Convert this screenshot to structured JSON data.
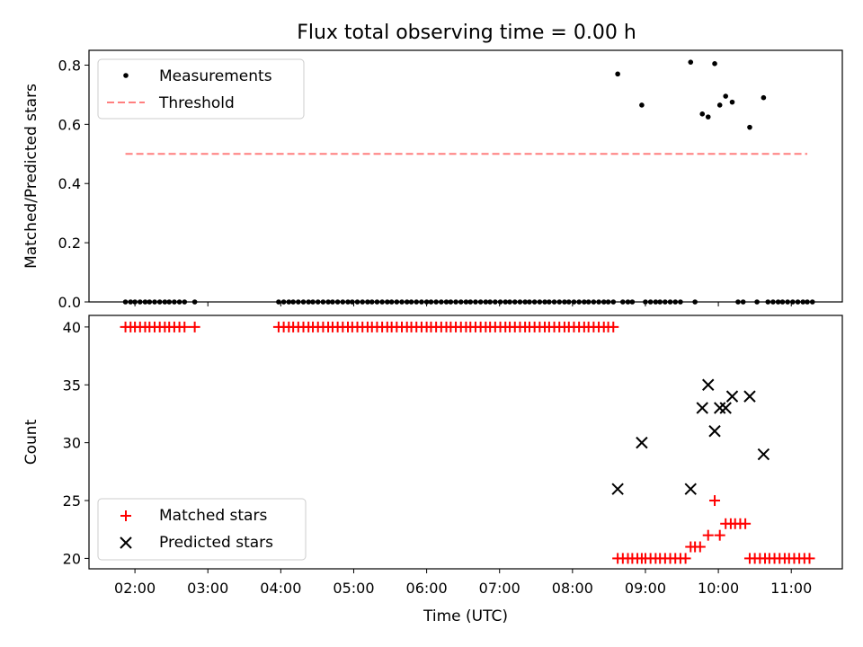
{
  "title": "Flux total observing time = 0.00 h",
  "chart_data": [
    {
      "type": "scatter",
      "title": "Flux total observing time = 0.00 h",
      "xlabel": "",
      "ylabel": "Matched/Predicted stars",
      "xlim": [
        1.37,
        11.7
      ],
      "ylim": [
        0,
        0.85
      ],
      "yticks": [
        0.0,
        0.2,
        0.4,
        0.6,
        0.8
      ],
      "ytick_labels": [
        "0.0",
        "0.2",
        "0.4",
        "0.6",
        "0.8"
      ],
      "grid": false,
      "legend_position": "top-left",
      "series": [
        {
          "name": "Measurements",
          "color": "#000000",
          "marker": "dot",
          "zero_x": [
            1.87,
            1.94,
            2.0,
            2.07,
            2.14,
            2.2,
            2.27,
            2.34,
            2.41,
            2.47,
            2.54,
            2.61,
            2.68,
            2.82,
            3.97,
            4.04,
            4.11,
            4.17,
            4.24,
            4.31,
            4.38,
            4.44,
            4.51,
            4.58,
            4.65,
            4.71,
            4.78,
            4.85,
            4.92,
            4.98,
            5.05,
            5.12,
            5.19,
            5.25,
            5.32,
            5.39,
            5.46,
            5.52,
            5.59,
            5.66,
            5.73,
            5.79,
            5.86,
            5.93,
            6.0,
            6.06,
            6.13,
            6.2,
            6.27,
            6.33,
            6.4,
            6.47,
            6.54,
            6.6,
            6.67,
            6.74,
            6.81,
            6.87,
            6.94,
            7.01,
            7.08,
            7.14,
            7.21,
            7.28,
            7.35,
            7.41,
            7.48,
            7.55,
            7.62,
            7.68,
            7.75,
            7.82,
            7.89,
            7.95,
            8.02,
            8.09,
            8.16,
            8.22,
            8.29,
            8.36,
            8.43,
            8.49,
            8.56,
            8.69,
            8.76,
            8.82,
            9.0,
            9.07,
            9.14,
            9.2,
            9.27,
            9.34,
            9.41,
            9.48,
            9.68,
            10.27,
            10.34,
            10.53,
            10.68,
            10.75,
            10.82,
            10.88,
            10.95,
            11.02,
            11.09,
            11.16,
            11.22,
            11.29
          ],
          "points": [
            {
              "x": 8.62,
              "y": 0.77
            },
            {
              "x": 8.95,
              "y": 0.665
            },
            {
              "x": 9.62,
              "y": 0.81
            },
            {
              "x": 9.78,
              "y": 0.635
            },
            {
              "x": 9.86,
              "y": 0.625
            },
            {
              "x": 9.95,
              "y": 0.805
            },
            {
              "x": 10.02,
              "y": 0.665
            },
            {
              "x": 10.1,
              "y": 0.695
            },
            {
              "x": 10.19,
              "y": 0.675
            },
            {
              "x": 10.43,
              "y": 0.59
            },
            {
              "x": 10.62,
              "y": 0.69
            }
          ]
        },
        {
          "name": "Threshold",
          "color": "#ff7f7f",
          "style": "dashed",
          "x": [
            1.87,
            11.22
          ],
          "y": [
            0.5,
            0.5
          ]
        }
      ]
    },
    {
      "type": "scatter",
      "xlabel": "Time (UTC)",
      "ylabel": "Count",
      "xlim": [
        1.37,
        11.7
      ],
      "ylim": [
        19.1,
        41.0
      ],
      "xticks": [
        2,
        3,
        4,
        5,
        6,
        7,
        8,
        9,
        10,
        11
      ],
      "xtick_labels": [
        "02:00",
        "03:00",
        "04:00",
        "05:00",
        "06:00",
        "07:00",
        "08:00",
        "09:00",
        "10:00",
        "11:00"
      ],
      "yticks": [
        20,
        25,
        30,
        35,
        40
      ],
      "ytick_labels": [
        "20",
        "25",
        "30",
        "35",
        "40"
      ],
      "grid": false,
      "legend_position": "bottom-left",
      "series": [
        {
          "name": "Matched stars",
          "color": "#ff0000",
          "marker": "plus",
          "groups": [
            {
              "y": 40,
              "x": [
                1.87,
                1.94,
                2.0,
                2.07,
                2.14,
                2.2,
                2.27,
                2.34,
                2.41,
                2.47,
                2.54,
                2.61,
                2.68,
                2.82
              ]
            },
            {
              "y": 40,
              "x": [
                3.97,
                4.04,
                4.11,
                4.17,
                4.24,
                4.31,
                4.38,
                4.44,
                4.51,
                4.58,
                4.65,
                4.71,
                4.78,
                4.85,
                4.92,
                4.98,
                5.05,
                5.12,
                5.19,
                5.25,
                5.32,
                5.39,
                5.46,
                5.52,
                5.59,
                5.66,
                5.73,
                5.79,
                5.86,
                5.93,
                6.0,
                6.06,
                6.13,
                6.2,
                6.27,
                6.33,
                6.4,
                6.47,
                6.54,
                6.6,
                6.67,
                6.74,
                6.81,
                6.87,
                6.94,
                7.01,
                7.08,
                7.14,
                7.21,
                7.28,
                7.35,
                7.41,
                7.48,
                7.55,
                7.62,
                7.68,
                7.75,
                7.82,
                7.89,
                7.95,
                8.02,
                8.09,
                8.16,
                8.22,
                8.29,
                8.36,
                8.43,
                8.49,
                8.56
              ]
            },
            {
              "y": 20,
              "x": [
                8.62,
                8.69,
                8.76,
                8.82,
                8.89,
                8.95,
                9.0,
                9.07,
                9.14,
                9.2,
                9.27,
                9.34,
                9.41,
                9.48,
                9.55
              ]
            },
            {
              "y": 21,
              "x": [
                9.62,
                9.68,
                9.75
              ]
            },
            {
              "y": 22,
              "x": [
                9.86,
                10.02
              ]
            },
            {
              "y": 25,
              "x": [
                9.95
              ]
            },
            {
              "y": 23,
              "x": [
                10.1,
                10.17,
                10.23,
                10.3,
                10.37
              ]
            },
            {
              "y": 20,
              "x": [
                10.43,
                10.5,
                10.57,
                10.64,
                10.7,
                10.77,
                10.84,
                10.91,
                10.97,
                11.04,
                11.11,
                11.18,
                11.25
              ]
            }
          ]
        },
        {
          "name": "Predicted stars",
          "color": "#000000",
          "marker": "x",
          "points": [
            {
              "x": 8.62,
              "y": 26
            },
            {
              "x": 8.95,
              "y": 30
            },
            {
              "x": 9.62,
              "y": 26
            },
            {
              "x": 9.78,
              "y": 33
            },
            {
              "x": 9.86,
              "y": 35
            },
            {
              "x": 9.95,
              "y": 31
            },
            {
              "x": 10.02,
              "y": 33
            },
            {
              "x": 10.1,
              "y": 33
            },
            {
              "x": 10.19,
              "y": 34
            },
            {
              "x": 10.43,
              "y": 34
            },
            {
              "x": 10.62,
              "y": 29
            }
          ]
        }
      ]
    }
  ]
}
